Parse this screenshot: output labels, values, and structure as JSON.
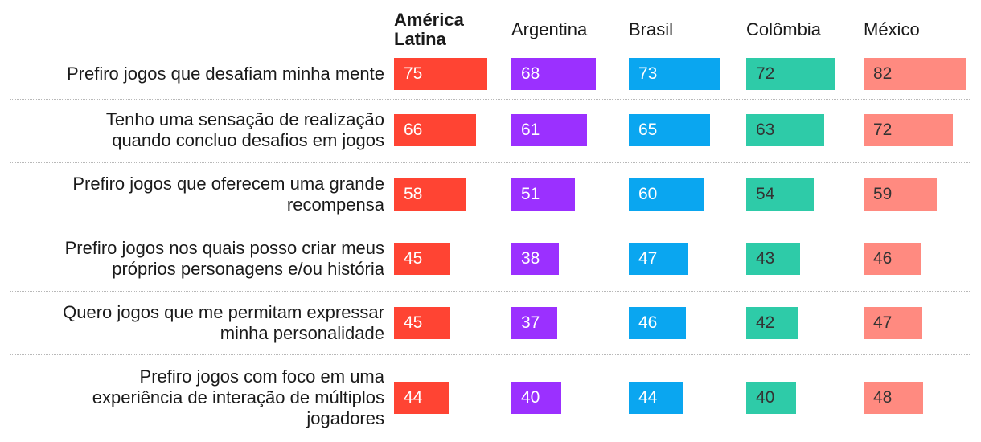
{
  "chart_data": {
    "type": "table",
    "columns": [
      {
        "name": "América\nLatina",
        "bold": true,
        "color": "#ff4433"
      },
      {
        "name": "Argentina",
        "bold": false,
        "color": "#9b30ff"
      },
      {
        "name": "Brasil",
        "bold": false,
        "color": "#0aa6f0"
      },
      {
        "name": "Colômbia",
        "bold": false,
        "color": "#2ecba8"
      },
      {
        "name": "México",
        "bold": false,
        "color": "#ff8a80"
      }
    ],
    "rows": [
      {
        "label": "Prefiro jogos que desafiam minha mente",
        "values": [
          75,
          68,
          73,
          72,
          82
        ]
      },
      {
        "label": "Tenho uma sensação de realização\nquando concluo desafios em jogos",
        "values": [
          66,
          61,
          65,
          63,
          72
        ]
      },
      {
        "label": "Prefiro jogos que oferecem uma grande\nrecompensa",
        "values": [
          58,
          51,
          60,
          54,
          59
        ]
      },
      {
        "label": "Prefiro jogos nos quais posso criar meus\npróprios personagens e/ou história",
        "values": [
          45,
          38,
          47,
          43,
          46
        ]
      },
      {
        "label": "Quero jogos que me permitam expressar\nminha personalidade",
        "values": [
          45,
          37,
          46,
          42,
          47
        ]
      },
      {
        "label": "Prefiro jogos com foco em uma\nexperiência de interação de múltiplos\njogadores",
        "values": [
          44,
          40,
          44,
          40,
          48
        ]
      }
    ]
  }
}
